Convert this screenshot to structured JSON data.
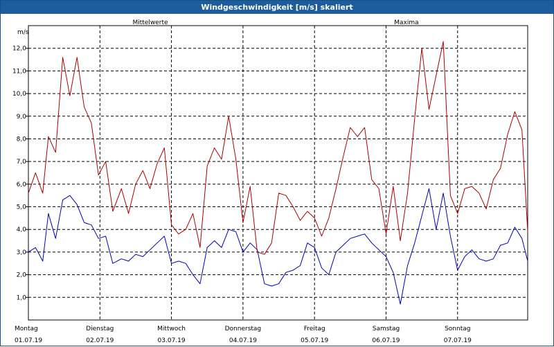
{
  "window": {
    "title": "Windgeschwindigkeit [m/s] skaliert"
  },
  "chart_data": {
    "type": "line",
    "title": "Windgeschwindigkeit [m/s] skaliert",
    "ylabel": "m/s",
    "ylim": [
      0,
      13
    ],
    "y_ticks": [
      "1,0",
      "2,0",
      "3,0",
      "4,0",
      "5,0",
      "6,0",
      "7,0",
      "8,0",
      "9,0",
      "10,0",
      "11,0",
      "12,0"
    ],
    "xlim": [
      0,
      6.98
    ],
    "grid": true,
    "days": [
      {
        "name": "Montag",
        "date": "01.07.19"
      },
      {
        "name": "Dienstag",
        "date": "02.07.19"
      },
      {
        "name": "Mittwoch",
        "date": "03.07.19"
      },
      {
        "name": "Donnerstag",
        "date": "04.07.19"
      },
      {
        "name": "Freitag",
        "date": "05.07.19"
      },
      {
        "name": "Samstag",
        "date": "06.07.19"
      },
      {
        "name": "Sonntag",
        "date": "07.07.19"
      }
    ],
    "series": [
      {
        "name": "Mittelwerte",
        "color": "#0000bb",
        "x": [
          0,
          0.1,
          0.2,
          0.28,
          0.38,
          0.48,
          0.58,
          0.68,
          0.78,
          0.88,
          0.98,
          1.08,
          1.18,
          1.3,
          1.4,
          1.5,
          1.6,
          1.7,
          1.8,
          1.9,
          2.0,
          2.1,
          2.2,
          2.3,
          2.4,
          2.5,
          2.6,
          2.7,
          2.8,
          2.9,
          3.0,
          3.1,
          3.2,
          3.3,
          3.4,
          3.5,
          3.6,
          3.7,
          3.8,
          3.9,
          4.0,
          4.1,
          4.2,
          4.3,
          4.4,
          4.5,
          4.6,
          4.7,
          4.8,
          4.9,
          5.0,
          5.1,
          5.2,
          5.3,
          5.4,
          5.5,
          5.6,
          5.7,
          5.8,
          5.9,
          6.0,
          6.1,
          6.2,
          6.3,
          6.4,
          6.5,
          6.6,
          6.7,
          6.8,
          6.9,
          6.98
        ],
        "values": [
          3.0,
          3.2,
          2.6,
          4.7,
          3.6,
          5.3,
          5.5,
          5.1,
          4.3,
          4.2,
          3.6,
          3.7,
          2.5,
          2.7,
          2.6,
          2.9,
          2.8,
          3.1,
          3.4,
          3.7,
          2.5,
          2.6,
          2.5,
          2.0,
          1.6,
          3.2,
          3.5,
          3.2,
          4.0,
          3.9,
          3.0,
          3.4,
          3.1,
          1.6,
          1.5,
          1.6,
          2.1,
          2.2,
          2.4,
          3.4,
          3.2,
          2.3,
          2.0,
          3.0,
          3.3,
          3.6,
          3.7,
          3.8,
          3.4,
          3.1,
          2.8,
          2.1,
          0.7,
          2.4,
          3.4,
          4.6,
          5.8,
          4.0,
          5.6,
          3.7,
          2.2,
          2.8,
          3.1,
          2.7,
          2.6,
          2.7,
          3.3,
          3.4,
          4.1,
          3.6,
          2.6
        ]
      },
      {
        "name": "Maxima",
        "color": "#aa0000",
        "x": [
          0,
          0.1,
          0.2,
          0.28,
          0.38,
          0.48,
          0.58,
          0.68,
          0.78,
          0.88,
          0.98,
          1.08,
          1.18,
          1.3,
          1.4,
          1.5,
          1.6,
          1.7,
          1.8,
          1.9,
          2.0,
          2.1,
          2.2,
          2.3,
          2.4,
          2.5,
          2.6,
          2.7,
          2.8,
          2.9,
          3.0,
          3.1,
          3.2,
          3.3,
          3.4,
          3.5,
          3.6,
          3.7,
          3.8,
          3.9,
          4.0,
          4.1,
          4.2,
          4.3,
          4.4,
          4.5,
          4.6,
          4.7,
          4.8,
          4.9,
          5.0,
          5.1,
          5.2,
          5.3,
          5.4,
          5.5,
          5.6,
          5.7,
          5.8,
          5.9,
          6.0,
          6.1,
          6.2,
          6.3,
          6.4,
          6.5,
          6.6,
          6.7,
          6.8,
          6.9,
          6.98
        ],
        "values": [
          5.6,
          6.5,
          5.6,
          8.1,
          7.4,
          11.6,
          9.9,
          11.6,
          9.4,
          8.7,
          6.4,
          7.0,
          4.8,
          5.8,
          4.7,
          6.0,
          6.6,
          5.8,
          6.9,
          7.6,
          4.2,
          3.8,
          4.0,
          4.7,
          3.2,
          6.8,
          7.6,
          7.1,
          9.0,
          7.1,
          4.3,
          5.9,
          3.0,
          2.9,
          3.4,
          5.6,
          5.5,
          5.0,
          4.4,
          4.8,
          4.5,
          3.7,
          4.5,
          5.8,
          7.2,
          8.5,
          8.1,
          8.5,
          6.2,
          5.8,
          3.8,
          5.9,
          3.5,
          5.6,
          8.9,
          12.0,
          9.3,
          10.8,
          12.3,
          5.5,
          4.7,
          5.8,
          5.9,
          5.6,
          4.9,
          6.2,
          6.7,
          8.2,
          9.2,
          8.4,
          3.9
        ]
      }
    ]
  }
}
